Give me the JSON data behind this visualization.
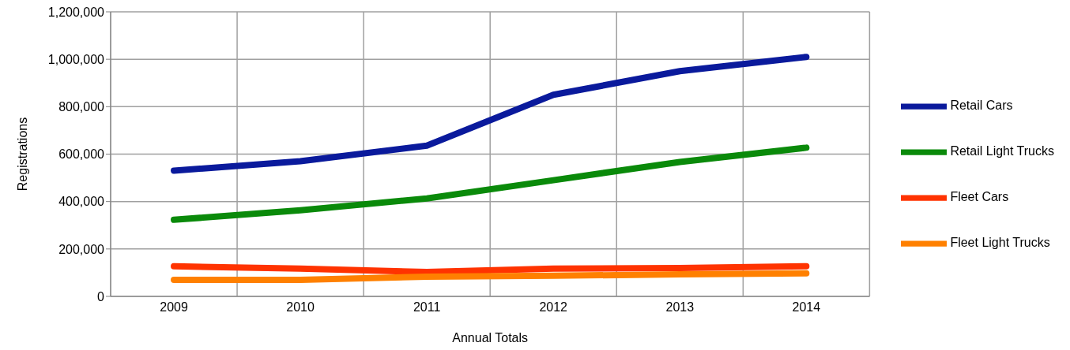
{
  "chart_data": {
    "type": "line",
    "xlabel": "Annual Totals",
    "ylabel": "Registrations",
    "categories": [
      "2009",
      "2010",
      "2011",
      "2012",
      "2013",
      "2014"
    ],
    "series": [
      {
        "name": "Retail Cars",
        "color": "#0a1a9c",
        "values": [
          530000,
          570000,
          636000,
          850000,
          950000,
          1010000
        ]
      },
      {
        "name": "Retail Light Trucks",
        "color": "#0a8a0a",
        "values": [
          323000,
          363000,
          413000,
          490000,
          567000,
          627000
        ]
      },
      {
        "name": "Fleet Cars",
        "color": "#ff3300",
        "values": [
          127000,
          117000,
          103000,
          117000,
          120000,
          127000
        ]
      },
      {
        "name": "Fleet Light Trucks",
        "color": "#ff8000",
        "values": [
          70000,
          70000,
          83000,
          87000,
          93000,
          97000
        ]
      }
    ],
    "ylim": [
      0,
      1200000
    ],
    "yticks": [
      0,
      {
        "value": 200000,
        "label": "200,000"
      },
      {
        "value": 400000,
        "label": "400,000"
      },
      {
        "value": 600000,
        "label": "600,000"
      },
      {
        "value": 800000,
        "label": "800,000"
      },
      {
        "value": 1000000,
        "label": "1,000,000"
      },
      {
        "value": 1200000,
        "label": "1,200,000"
      }
    ],
    "grid": true,
    "legend": "right",
    "marker": "none",
    "line_style": "solid"
  }
}
